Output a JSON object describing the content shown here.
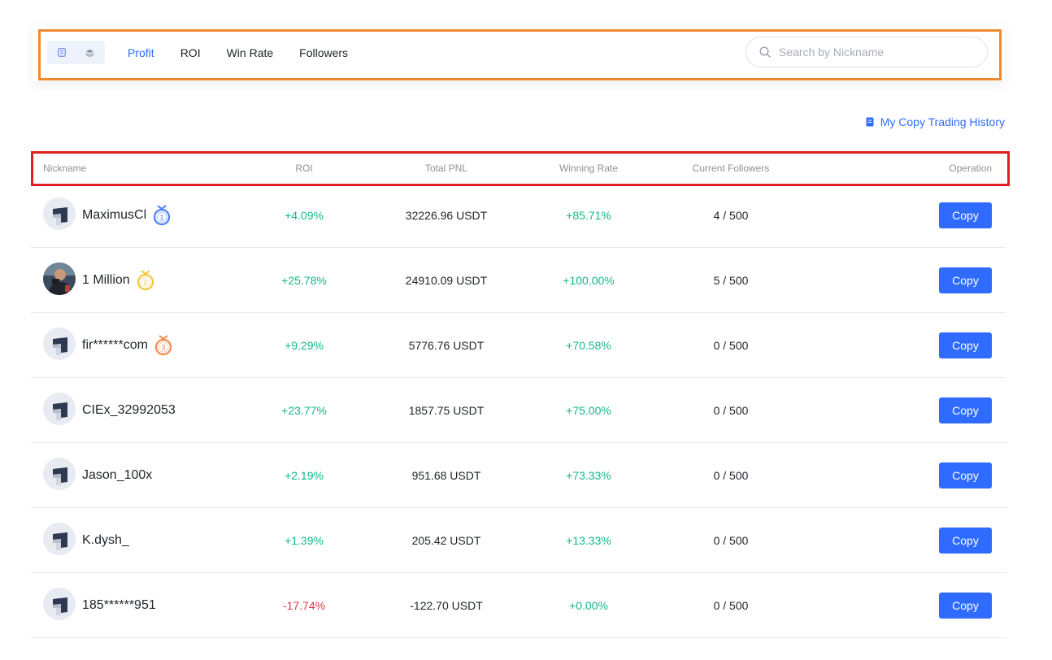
{
  "filters": {
    "view_icons": [
      "list-view-icon",
      "card-view-icon"
    ],
    "tabs": [
      {
        "label": "Profit",
        "active": true
      },
      {
        "label": "ROI",
        "active": false
      },
      {
        "label": "Win Rate",
        "active": false
      },
      {
        "label": "Followers",
        "active": false
      }
    ],
    "search": {
      "placeholder": "Search by Nickname",
      "value": ""
    }
  },
  "history_link": "My Copy Trading History",
  "table": {
    "headers": {
      "nickname": "Nickname",
      "roi": "ROI",
      "pnl": "Total PNL",
      "win": "Winning Rate",
      "followers": "Current Followers",
      "operation": "Operation"
    },
    "copy_label": "Copy",
    "rows": [
      {
        "nickname": "MaximusCl",
        "medal": "1",
        "avatar": "default",
        "roi": "+4.09%",
        "pnl": "32226.96 USDT",
        "win": "+85.71%",
        "followers": "4 / 500",
        "roi_sign": "pos"
      },
      {
        "nickname": "1 Million",
        "medal": "2",
        "avatar": "photo",
        "roi": "+25.78%",
        "pnl": "24910.09 USDT",
        "win": "+100.00%",
        "followers": "5 / 500",
        "roi_sign": "pos"
      },
      {
        "nickname": "fir******com",
        "medal": "3",
        "avatar": "default",
        "roi": "+9.29%",
        "pnl": "5776.76 USDT",
        "win": "+70.58%",
        "followers": "0 / 500",
        "roi_sign": "pos"
      },
      {
        "nickname": "CIEx_32992053",
        "medal": "",
        "avatar": "default",
        "roi": "+23.77%",
        "pnl": "1857.75 USDT",
        "win": "+75.00%",
        "followers": "0 / 500",
        "roi_sign": "pos"
      },
      {
        "nickname": "Jason_100x",
        "medal": "",
        "avatar": "default",
        "roi": "+2.19%",
        "pnl": "951.68 USDT",
        "win": "+73.33%",
        "followers": "0 / 500",
        "roi_sign": "pos"
      },
      {
        "nickname": "K.dysh_",
        "medal": "",
        "avatar": "default",
        "roi": "+1.39%",
        "pnl": "205.42 USDT",
        "win": "+13.33%",
        "followers": "0 / 500",
        "roi_sign": "pos"
      },
      {
        "nickname": "185******951",
        "medal": "",
        "avatar": "default",
        "roi": "-17.74%",
        "pnl": "-122.70 USDT",
        "win": "+0.00%",
        "followers": "0 / 500",
        "roi_sign": "neg"
      }
    ]
  },
  "colors": {
    "accent": "#2f6bff",
    "positive": "#12b886",
    "negative": "#e0344a",
    "medal_gold": "#2f6bff",
    "medal_1": "#4a7dff",
    "medal_2": "#f5c53a",
    "medal_3": "#f08a4b"
  }
}
